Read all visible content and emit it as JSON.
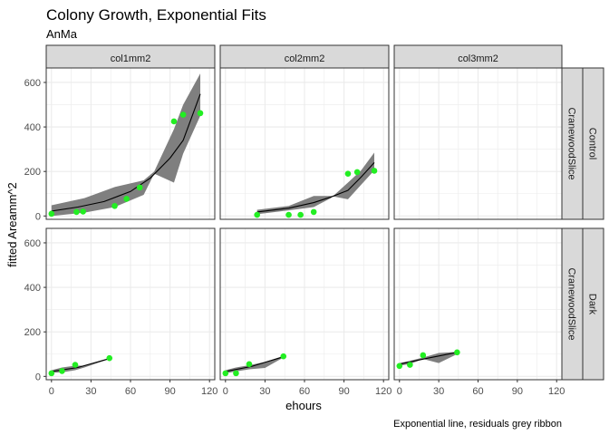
{
  "chart_data": {
    "type": "facet_scatter_line",
    "title": "Colony Growth, Exponential Fits",
    "subtitle": "AnMa",
    "xlabel": "ehours",
    "ylabel": "fitted Areamm^2",
    "caption": "Exponential line, residuals grey ribbon",
    "xlim": [
      -4,
      124
    ],
    "ylim": [
      -15,
      665
    ],
    "x_ticks": [
      0,
      30,
      60,
      90,
      120
    ],
    "y_ticks": [
      0,
      200,
      400,
      600
    ],
    "colors": {
      "point": "#22ee22",
      "line": "#000000",
      "ribbon": "#7f7f7f",
      "strip": "#d9d9d9",
      "grid": "#ebebeb"
    },
    "col_strips": [
      "col1mm2",
      "col2mm2",
      "col3mm2"
    ],
    "row_strips_inner": [
      "CranewoodSlice",
      "CranewoodSlice"
    ],
    "row_strips_outer": [
      "Control",
      "Dark"
    ],
    "panels": [
      {
        "row": 0,
        "col": 0,
        "points": [
          [
            0,
            10
          ],
          [
            19,
            18
          ],
          [
            24,
            20
          ],
          [
            48,
            45
          ],
          [
            57,
            77
          ],
          [
            67,
            128
          ],
          [
            93,
            425
          ],
          [
            100,
            455
          ],
          [
            113,
            462
          ]
        ],
        "fit": [
          [
            0,
            22
          ],
          [
            20,
            40
          ],
          [
            40,
            65
          ],
          [
            60,
            110
          ],
          [
            75,
            170
          ],
          [
            90,
            260
          ],
          [
            100,
            340
          ],
          [
            113,
            548
          ]
        ],
        "ribbon": [
          [
            0,
            48,
            0
          ],
          [
            25,
            80,
            15
          ],
          [
            48,
            130,
            40
          ],
          [
            70,
            160,
            95
          ],
          [
            78,
            200,
            190
          ],
          [
            93,
            390,
            150
          ],
          [
            100,
            500,
            280
          ],
          [
            113,
            640,
            450
          ]
        ]
      },
      {
        "row": 0,
        "col": 1,
        "points": [
          [
            24,
            5
          ],
          [
            48,
            5
          ],
          [
            57,
            5
          ],
          [
            67,
            18
          ],
          [
            93,
            190
          ],
          [
            100,
            197
          ],
          [
            113,
            203
          ]
        ],
        "fit": [
          [
            24,
            18
          ],
          [
            48,
            35
          ],
          [
            67,
            60
          ],
          [
            80,
            85
          ],
          [
            93,
            115
          ],
          [
            103,
            175
          ],
          [
            113,
            240
          ]
        ],
        "ribbon": [
          [
            24,
            28,
            8
          ],
          [
            48,
            45,
            25
          ],
          [
            67,
            90,
            40
          ],
          [
            80,
            90,
            80
          ],
          [
            93,
            75,
            150
          ],
          [
            103,
            140,
            205
          ],
          [
            113,
            205,
            285
          ]
        ]
      },
      {
        "row": 0,
        "col": 2,
        "points": [],
        "fit": [],
        "ribbon": []
      },
      {
        "row": 1,
        "col": 0,
        "points": [
          [
            0,
            14
          ],
          [
            8,
            24
          ],
          [
            18,
            52
          ],
          [
            44,
            82
          ]
        ],
        "fit": [
          [
            0,
            22
          ],
          [
            20,
            40
          ],
          [
            44,
            80
          ]
        ],
        "ribbon": [
          [
            0,
            28,
            16
          ],
          [
            8,
            40,
            18
          ],
          [
            18,
            48,
            28
          ],
          [
            25,
            48,
            40
          ],
          [
            44,
            82,
            78
          ]
        ]
      },
      {
        "row": 1,
        "col": 1,
        "points": [
          [
            0,
            14
          ],
          [
            8,
            14
          ],
          [
            18,
            55
          ],
          [
            44,
            90
          ]
        ],
        "fit": [
          [
            0,
            22
          ],
          [
            20,
            45
          ],
          [
            44,
            88
          ]
        ],
        "ribbon": [
          [
            0,
            28,
            14
          ],
          [
            8,
            40,
            22
          ],
          [
            18,
            50,
            32
          ],
          [
            30,
            65,
            38
          ],
          [
            44,
            92,
            85
          ]
        ]
      },
      {
        "row": 1,
        "col": 2,
        "points": [
          [
            0,
            47
          ],
          [
            8,
            52
          ],
          [
            18,
            95
          ],
          [
            44,
            108
          ]
        ],
        "fit": [
          [
            0,
            55
          ],
          [
            20,
            80
          ],
          [
            44,
            108
          ]
        ],
        "ribbon": [
          [
            0,
            60,
            48
          ],
          [
            8,
            70,
            55
          ],
          [
            18,
            85,
            78
          ],
          [
            30,
            105,
            60
          ],
          [
            44,
            110,
            100
          ]
        ]
      }
    ]
  }
}
